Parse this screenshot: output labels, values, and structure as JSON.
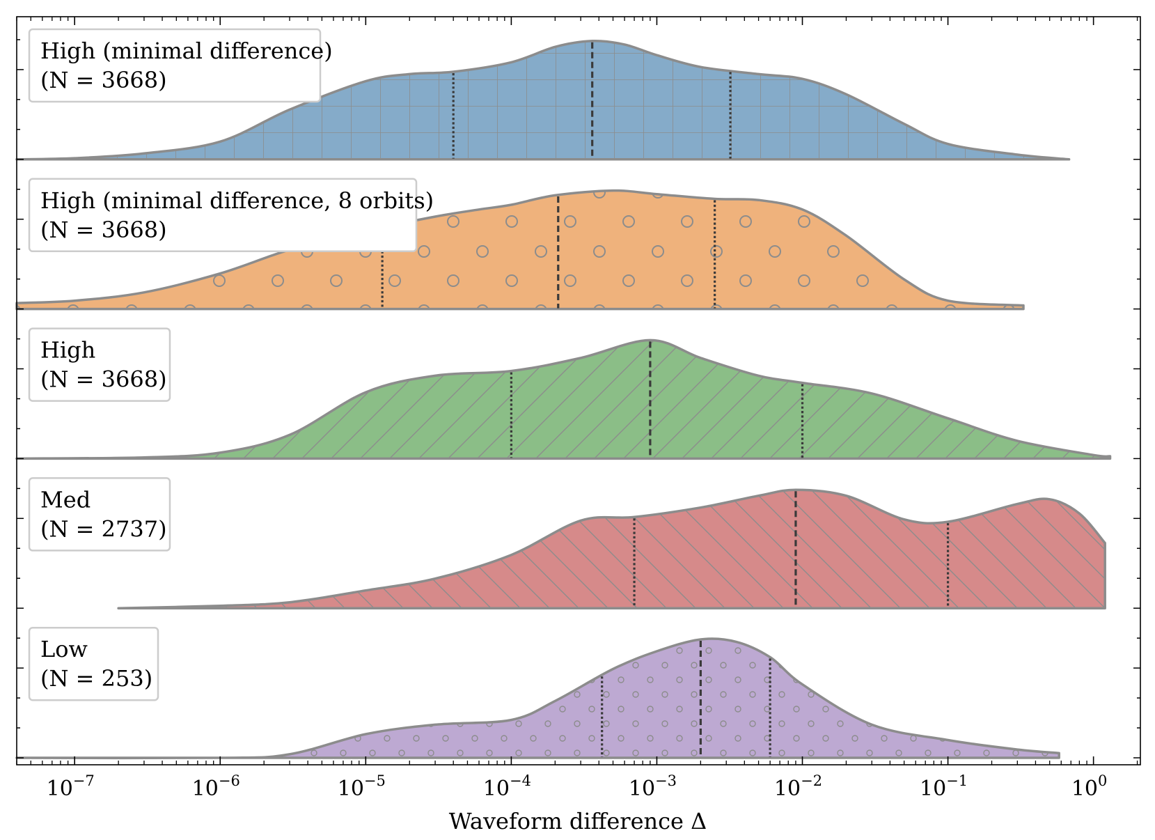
{
  "chart_data": {
    "type": "violin",
    "orientation": "horizontal",
    "title": "",
    "xlabel": "Waveform difference Δ",
    "ylabel": "",
    "xscale": "log",
    "xlim": [
      4e-08,
      2.1
    ],
    "ticks": [
      {
        "value": 1e-07,
        "label": "10−7"
      },
      {
        "value": 1e-06,
        "label": "10−6"
      },
      {
        "value": 1e-05,
        "label": "10−5"
      },
      {
        "value": 0.0001,
        "label": "10−4"
      },
      {
        "value": 0.001,
        "label": "10−3"
      },
      {
        "value": 0.01,
        "label": "10−2"
      },
      {
        "value": 0.1,
        "label": "10−1"
      },
      {
        "value": 1,
        "label": "100"
      }
    ],
    "tick_base": "10",
    "tick_exponents": [
      "−7",
      "−6",
      "−5",
      "−4",
      "−3",
      "−2",
      "−1",
      "0"
    ],
    "series": [
      {
        "name": "High (minimal difference)",
        "label_line1": "High (minimal difference)",
        "label_line2": "(N = 3668)",
        "n": 3668,
        "color": "#85abc9",
        "hatch": "grid",
        "range": [
          4e-08,
          0.68
        ],
        "quartiles": [
          4e-05,
          0.00036,
          0.0032
        ],
        "density": [
          [
            4e-08,
            0.0
          ],
          [
            1e-07,
            0.01
          ],
          [
            3e-07,
            0.05
          ],
          [
            1e-06,
            0.15
          ],
          [
            3e-06,
            0.42
          ],
          [
            1e-05,
            0.66
          ],
          [
            2e-05,
            0.72
          ],
          [
            4e-05,
            0.74
          ],
          [
            0.0001,
            0.82
          ],
          [
            0.0002,
            0.95
          ],
          [
            0.00036,
            1.0
          ],
          [
            0.0006,
            0.97
          ],
          [
            0.001,
            0.88
          ],
          [
            0.002,
            0.78
          ],
          [
            0.005,
            0.72
          ],
          [
            0.01,
            0.68
          ],
          [
            0.02,
            0.55
          ],
          [
            0.05,
            0.3
          ],
          [
            0.1,
            0.13
          ],
          [
            0.3,
            0.04
          ],
          [
            0.68,
            0.0
          ]
        ]
      },
      {
        "name": "High (minimal difference, 8 orbits)",
        "label_line1": "High (minimal difference, 8 orbits)",
        "label_line2": "(N = 3668)",
        "n": 3668,
        "color": "#efb27c",
        "hatch": "circles",
        "range": [
          4e-08,
          0.33
        ],
        "quartiles": [
          1.3e-05,
          0.00021,
          0.0025
        ],
        "density": [
          [
            4e-08,
            0.05
          ],
          [
            1e-07,
            0.07
          ],
          [
            3e-07,
            0.14
          ],
          [
            1e-06,
            0.3
          ],
          [
            3e-06,
            0.5
          ],
          [
            1e-05,
            0.66
          ],
          [
            3e-05,
            0.78
          ],
          [
            6e-05,
            0.84
          ],
          [
            0.0001,
            0.88
          ],
          [
            0.0002,
            0.96
          ],
          [
            0.0005,
            1.0
          ],
          [
            0.001,
            0.97
          ],
          [
            0.0025,
            0.93
          ],
          [
            0.005,
            0.92
          ],
          [
            0.01,
            0.84
          ],
          [
            0.02,
            0.62
          ],
          [
            0.05,
            0.25
          ],
          [
            0.1,
            0.07
          ],
          [
            0.33,
            0.03
          ]
        ]
      },
      {
        "name": "High",
        "label_line1": "High",
        "label_line2": "(N = 3668)",
        "n": 3668,
        "color": "#8bbe87",
        "hatch": "diagonal-up",
        "range": [
          4e-08,
          1.3
        ],
        "quartiles": [
          0.0001,
          0.0009,
          0.01
        ],
        "density": [
          [
            4e-08,
            0.0
          ],
          [
            3e-07,
            0.01
          ],
          [
            1e-06,
            0.05
          ],
          [
            3e-06,
            0.2
          ],
          [
            1e-05,
            0.56
          ],
          [
            3e-05,
            0.7
          ],
          [
            0.0001,
            0.74
          ],
          [
            0.0003,
            0.85
          ],
          [
            0.0009,
            1.0
          ],
          [
            0.002,
            0.85
          ],
          [
            0.005,
            0.7
          ],
          [
            0.01,
            0.64
          ],
          [
            0.03,
            0.55
          ],
          [
            0.1,
            0.34
          ],
          [
            0.3,
            0.15
          ],
          [
            1.0,
            0.03
          ],
          [
            1.3,
            0.02
          ]
        ]
      },
      {
        "name": "Med",
        "label_line1": "Med",
        "label_line2": "(N = 2737)",
        "n": 2737,
        "color": "#d68a8a",
        "hatch": "diagonal-down",
        "range": [
          2e-07,
          1.2
        ],
        "quartiles": [
          0.0007,
          0.009,
          0.1
        ],
        "density": [
          [
            2e-07,
            0.0
          ],
          [
            1e-06,
            0.02
          ],
          [
            3e-06,
            0.05
          ],
          [
            1e-05,
            0.15
          ],
          [
            3e-05,
            0.25
          ],
          [
            0.0001,
            0.45
          ],
          [
            0.0003,
            0.74
          ],
          [
            0.0007,
            0.77
          ],
          [
            0.002,
            0.85
          ],
          [
            0.005,
            0.95
          ],
          [
            0.009,
            1.0
          ],
          [
            0.02,
            0.95
          ],
          [
            0.05,
            0.75
          ],
          [
            0.1,
            0.73
          ],
          [
            0.3,
            0.88
          ],
          [
            0.5,
            0.92
          ],
          [
            0.8,
            0.8
          ],
          [
            1.2,
            0.55
          ]
        ]
      },
      {
        "name": "Low",
        "label_line1": "Low",
        "label_line2": "(N = 253)",
        "n": 253,
        "color": "#bda9d2",
        "hatch": "small-circles",
        "range": [
          4e-08,
          0.58
        ],
        "quartiles": [
          0.00042,
          0.002,
          0.006
        ],
        "density": [
          [
            4e-08,
            0.0
          ],
          [
            1e-06,
            0.0
          ],
          [
            3e-06,
            0.03
          ],
          [
            1e-05,
            0.2
          ],
          [
            3e-05,
            0.28
          ],
          [
            0.0001,
            0.32
          ],
          [
            0.0002,
            0.48
          ],
          [
            0.0005,
            0.75
          ],
          [
            0.001,
            0.9
          ],
          [
            0.002,
            1.0
          ],
          [
            0.0035,
            0.98
          ],
          [
            0.006,
            0.85
          ],
          [
            0.01,
            0.62
          ],
          [
            0.03,
            0.28
          ],
          [
            0.1,
            0.15
          ],
          [
            0.3,
            0.07
          ],
          [
            0.58,
            0.04
          ]
        ]
      }
    ]
  }
}
